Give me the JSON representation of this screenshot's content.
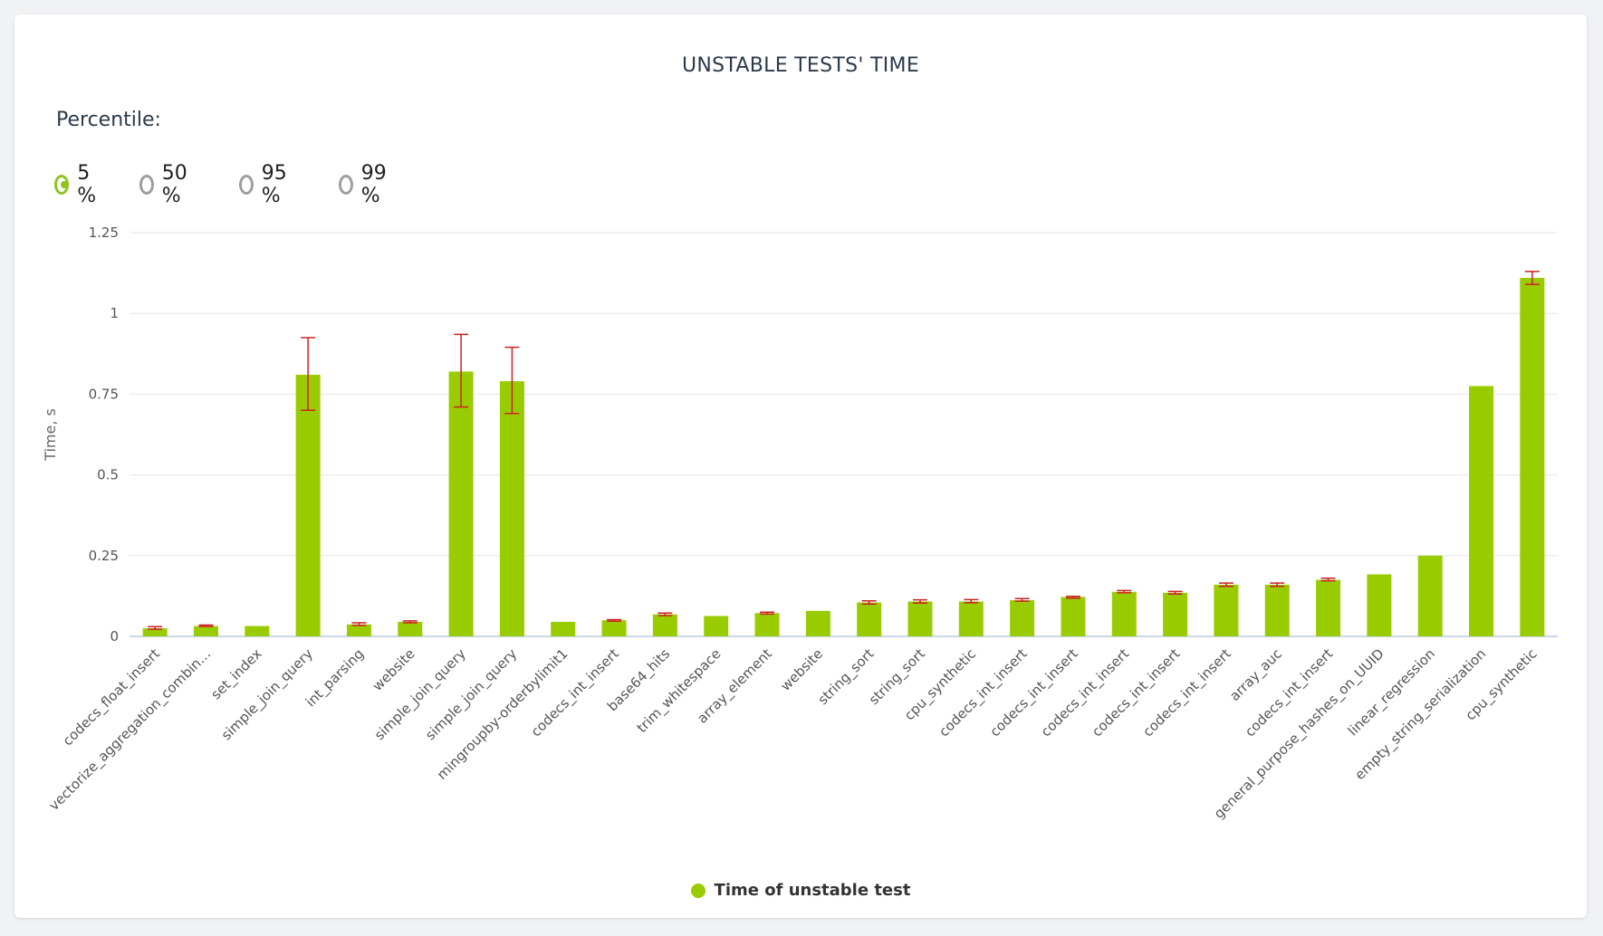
{
  "chart_data": {
    "type": "bar",
    "title": "UNSTABLE TESTS' TIME",
    "ylabel": "Time, s",
    "xlabel": "",
    "ylim": [
      0,
      1.25
    ],
    "yticks": [
      "0",
      "0.25",
      "0.5",
      "0.75",
      "1",
      "1.25"
    ],
    "grid": true,
    "legend_position": "bottom-center",
    "categories": [
      "codecs_float_insert",
      "vectorize_aggregation_combin…",
      "set_index",
      "simple_join_query",
      "int_parsing",
      "website",
      "simple_join_query",
      "simple_join_query",
      "mingroupby-orderbylimit1",
      "codecs_int_insert",
      "base64_hits",
      "trim_whitespace",
      "array_element",
      "website",
      "string_sort",
      "string_sort",
      "cpu_synthetic",
      "codecs_int_insert",
      "codecs_int_insert",
      "codecs_int_insert",
      "codecs_int_insert",
      "codecs_int_insert",
      "array_auc",
      "codecs_int_insert",
      "general_purpose_hashes_on_UUID",
      "linear_regression",
      "empty_string_serialization",
      "cpu_synthetic"
    ],
    "series": [
      {
        "name": "Time of unstable test",
        "color": "#99cc00",
        "values": [
          0.025,
          0.032,
          0.032,
          0.81,
          0.037,
          0.045,
          0.82,
          0.79,
          0.045,
          0.05,
          0.068,
          0.063,
          0.072,
          0.079,
          0.105,
          0.108,
          0.108,
          0.112,
          0.122,
          0.138,
          0.135,
          0.16,
          0.16,
          0.175,
          0.192,
          0.25,
          0.775,
          1.11
        ],
        "error_low": [
          0.022,
          0.031,
          null,
          0.7,
          0.034,
          0.042,
          0.71,
          0.69,
          null,
          0.047,
          0.064,
          null,
          0.069,
          null,
          0.1,
          0.103,
          0.104,
          0.109,
          0.118,
          0.135,
          0.131,
          0.155,
          0.155,
          0.172,
          null,
          null,
          null,
          1.09
        ],
        "error_high": [
          0.03,
          0.035,
          null,
          0.925,
          0.042,
          0.048,
          0.935,
          0.895,
          null,
          0.052,
          0.072,
          null,
          0.075,
          null,
          0.11,
          0.113,
          0.114,
          0.117,
          0.124,
          0.142,
          0.139,
          0.165,
          0.165,
          0.18,
          null,
          null,
          null,
          1.13
        ],
        "error_color": "#cc2222"
      }
    ]
  },
  "controls": {
    "percentile_label": "Percentile:",
    "options": [
      {
        "label": "5 %",
        "selected": true
      },
      {
        "label": "50 %",
        "selected": false
      },
      {
        "label": "95 %",
        "selected": false
      },
      {
        "label": "99 %",
        "selected": false
      }
    ]
  },
  "legend": {
    "label": "Time of unstable test"
  }
}
